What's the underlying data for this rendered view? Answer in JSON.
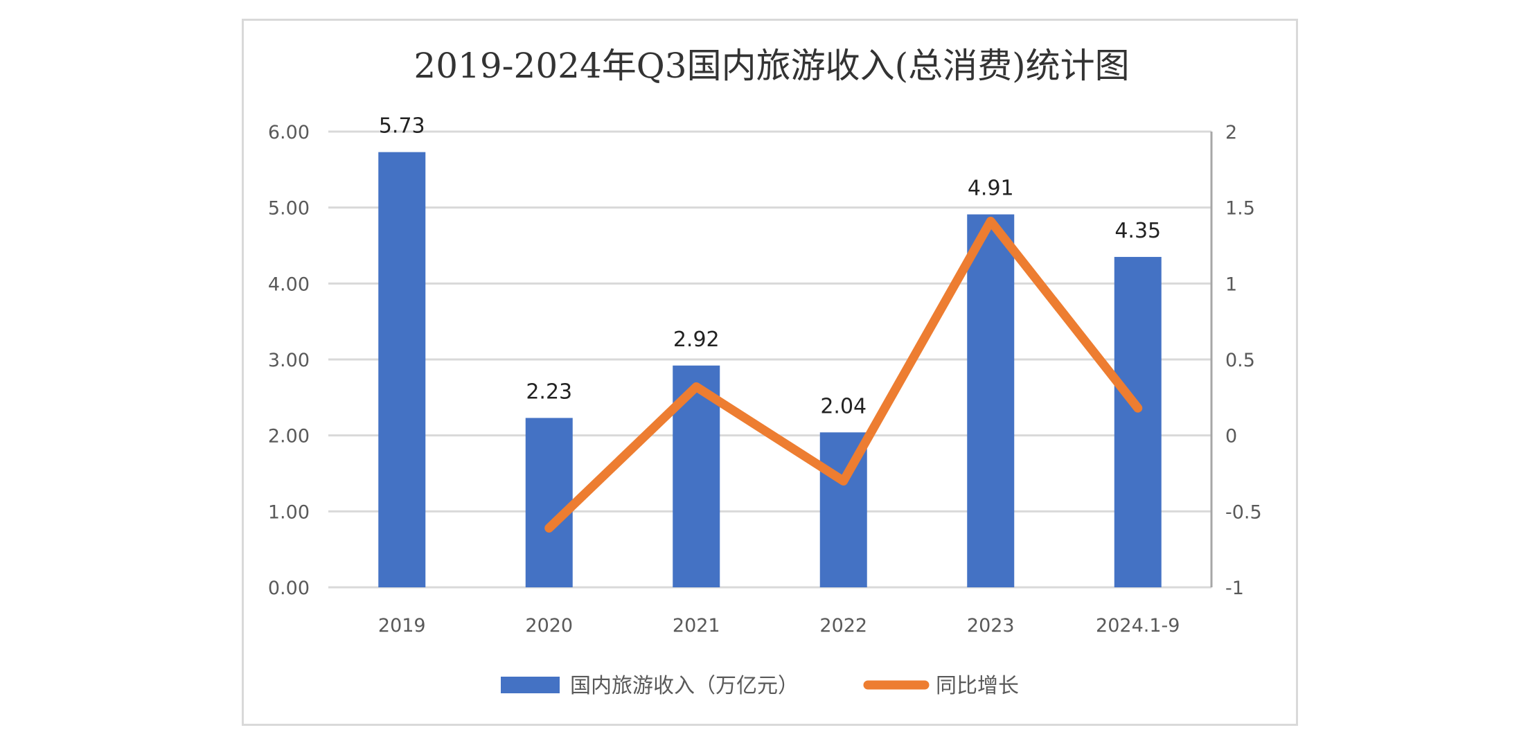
{
  "chart_data": {
    "type": "bar+line",
    "title": "2019-2024年Q3国内旅游收入(总消费)统计图",
    "categories": [
      "2019",
      "2020",
      "2021",
      "2022",
      "2023",
      "2024.1-9"
    ],
    "series": [
      {
        "name": "国内旅游收入（万亿元）",
        "type": "bar",
        "axis": "left",
        "color": "#4472C4",
        "values": [
          5.73,
          2.23,
          2.92,
          2.04,
          4.91,
          4.35
        ],
        "data_labels": [
          "5.73",
          "2.23",
          "2.92",
          "2.04",
          "4.91",
          "4.35"
        ]
      },
      {
        "name": "同比增长",
        "type": "line",
        "axis": "right",
        "color": "#ED7D31",
        "values": [
          null,
          -0.61,
          0.32,
          -0.3,
          1.41,
          0.18
        ]
      }
    ],
    "y_left": {
      "range": [
        0,
        6
      ],
      "ticks": [
        "0.00",
        "1.00",
        "2.00",
        "3.00",
        "4.00",
        "5.00",
        "6.00"
      ]
    },
    "y_right": {
      "range": [
        -1,
        2
      ],
      "ticks": [
        "-1",
        "-0.5",
        "0",
        "0.5",
        "1",
        "1.5",
        "2"
      ]
    },
    "grid": true,
    "legend_position": "bottom"
  }
}
